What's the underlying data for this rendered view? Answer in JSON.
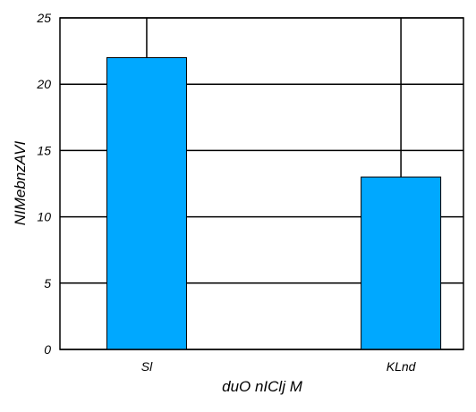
{
  "chart_data": {
    "type": "bar",
    "categories": [
      "Sl",
      "KLnd"
    ],
    "values": [
      22,
      13
    ],
    "xlabel": "duO nIClj M",
    "ylabel": "NIMebnzAVI",
    "ylim": [
      0,
      25
    ],
    "yticks": [
      0,
      5,
      10,
      15,
      20,
      25
    ],
    "grid": true,
    "legend": "none",
    "colors": {
      "bar": "#00a8ff",
      "bar_edge": "#000000",
      "grid": "#000000",
      "background": "#ffffff"
    }
  }
}
